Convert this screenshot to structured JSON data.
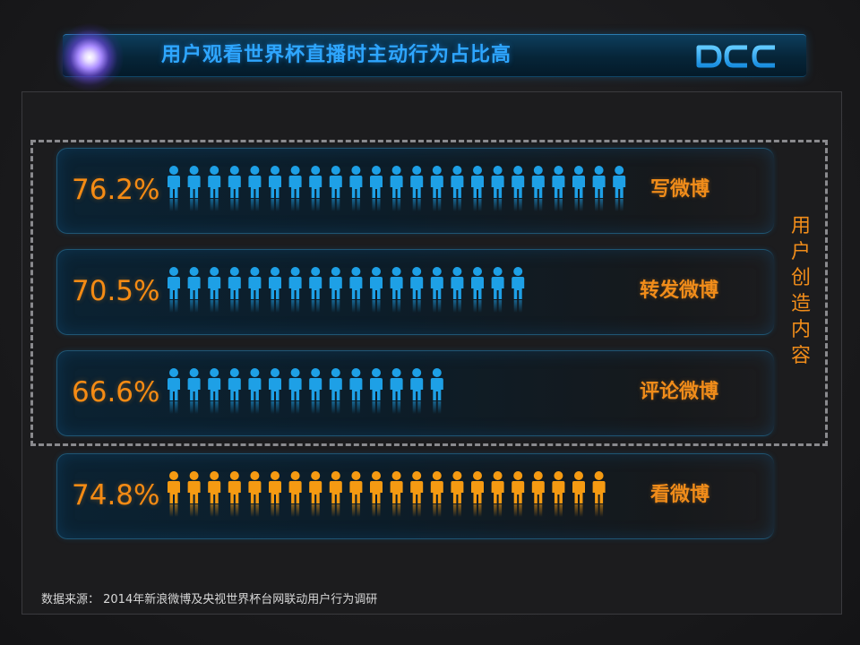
{
  "header": {
    "title": "用户观看世界杯直播时主动行为占比高",
    "logo_text": "DCCI"
  },
  "group_label": "用户创造内容",
  "source_note": "数据来源： 2014年新浪微博及央视世界杯台网联动用户行为调研",
  "colors": {
    "blue_icon": "#1ea0e6",
    "orange_icon": "#f59a12",
    "accent_orange": "#f08c1a",
    "title_blue": "#2ea6ff"
  },
  "chart_data": {
    "type": "bar",
    "title": "用户观看世界杯直播时主动行为占比高",
    "xlabel": "",
    "ylabel": "",
    "categories": [
      "写微博",
      "转发微博",
      "评论微博",
      "看微博"
    ],
    "values": [
      76.2,
      70.5,
      66.6,
      74.8
    ],
    "value_labels": [
      "76.2%",
      "70.5%",
      "66.6%",
      "74.8%"
    ],
    "icon_counts": [
      23,
      18,
      14,
      22
    ],
    "icon_colors": [
      "#1ea0e6",
      "#1ea0e6",
      "#1ea0e6",
      "#f59a12"
    ],
    "group": {
      "label": "用户创造内容",
      "members": [
        "写微博",
        "转发微博",
        "评论微博"
      ]
    }
  }
}
